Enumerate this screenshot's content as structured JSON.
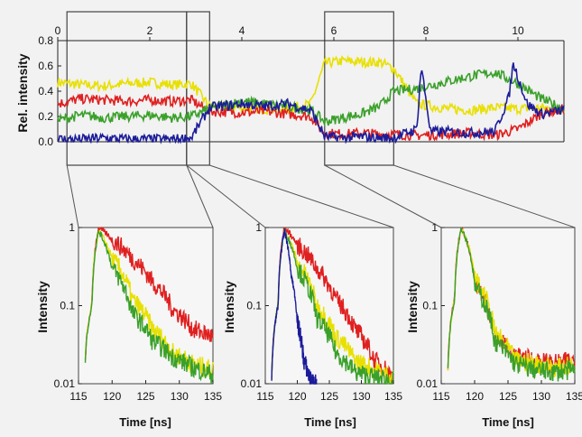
{
  "chart_data": [
    {
      "type": "line",
      "ylabel": "Rel. intensity",
      "xlim": [
        0,
        11
      ],
      "ylim": [
        0,
        0.8
      ],
      "x_ticks": [
        "0",
        "2",
        "4",
        "6",
        "8",
        "10"
      ],
      "y_ticks": [
        "0.0",
        "0.2",
        "0.4",
        "0.6",
        "0.8"
      ],
      "grid": false,
      "highlight_windows": [
        [
          0.2,
          2.8
        ],
        [
          2.8,
          3.3
        ],
        [
          5.8,
          7.3
        ]
      ],
      "series": [
        {
          "color": "#e8e000",
          "x": [
            0,
            0.5,
            1,
            1.5,
            2,
            2.5,
            2.9,
            3.3,
            4,
            4.5,
            5,
            5.5,
            5.8,
            6.2,
            6.6,
            7,
            7.3,
            7.8,
            8.5,
            9,
            9.5,
            10,
            10.5,
            11
          ],
          "values": [
            0.47,
            0.45,
            0.44,
            0.46,
            0.47,
            0.45,
            0.46,
            0.28,
            0.27,
            0.26,
            0.26,
            0.3,
            0.62,
            0.64,
            0.63,
            0.63,
            0.58,
            0.3,
            0.26,
            0.25,
            0.27,
            0.26,
            0.27,
            0.26
          ]
        },
        {
          "color": "#e02020",
          "x": [
            0,
            0.5,
            1,
            1.5,
            2,
            2.5,
            2.9,
            3.3,
            4,
            4.5,
            5,
            5.5,
            5.8,
            6.2,
            6.6,
            7,
            7.3,
            7.8,
            8.5,
            9,
            9.5,
            10,
            10.5,
            11
          ],
          "values": [
            0.3,
            0.34,
            0.33,
            0.32,
            0.33,
            0.32,
            0.33,
            0.24,
            0.23,
            0.24,
            0.22,
            0.2,
            0.07,
            0.06,
            0.07,
            0.06,
            0.06,
            0.05,
            0.06,
            0.07,
            0.05,
            0.1,
            0.22,
            0.26
          ]
        },
        {
          "color": "#3aa02a",
          "x": [
            0,
            0.5,
            1,
            1.5,
            2,
            2.5,
            2.9,
            3.3,
            4,
            4.5,
            5,
            5.5,
            5.8,
            6.2,
            6.6,
            7,
            7.3,
            7.8,
            8.5,
            9,
            9.5,
            10,
            10.5,
            11
          ],
          "values": [
            0.17,
            0.21,
            0.19,
            0.2,
            0.21,
            0.19,
            0.2,
            0.26,
            0.32,
            0.3,
            0.28,
            0.25,
            0.16,
            0.19,
            0.22,
            0.28,
            0.4,
            0.42,
            0.48,
            0.52,
            0.55,
            0.46,
            0.34,
            0.26
          ]
        },
        {
          "color": "#1c1c9a",
          "x": [
            0,
            0.5,
            1,
            1.5,
            2,
            2.5,
            2.9,
            3.3,
            4,
            4.5,
            5,
            5.5,
            5.8,
            6.2,
            6.6,
            7,
            7.3,
            7.8,
            7.9,
            8.1,
            8.5,
            9,
            9.5,
            9.8,
            9.9,
            10.2,
            10.5,
            11
          ],
          "values": [
            0.02,
            0.02,
            0.03,
            0.02,
            0.02,
            0.02,
            0.03,
            0.27,
            0.3,
            0.28,
            0.3,
            0.25,
            0.04,
            0.03,
            0.04,
            0.03,
            0.03,
            0.1,
            0.6,
            0.08,
            0.08,
            0.07,
            0.08,
            0.35,
            0.62,
            0.3,
            0.22,
            0.25
          ]
        }
      ]
    },
    {
      "type": "line",
      "log_scale_y": true,
      "xlabel": "Time [ns]",
      "ylabel": "Intensity",
      "xlim": [
        115,
        135
      ],
      "ylim": [
        0.01,
        1
      ],
      "x_ticks": [
        "115",
        "120",
        "125",
        "130",
        "135"
      ],
      "y_ticks": [
        "1",
        "0.1",
        "0.01"
      ],
      "series": [
        {
          "color": "#e02020",
          "x": [
            116,
            117,
            118,
            120,
            123,
            126,
            129,
            132,
            135
          ],
          "values": [
            0.02,
            0.1,
            1,
            0.7,
            0.4,
            0.2,
            0.09,
            0.05,
            0.04
          ]
        },
        {
          "color": "#e8e000",
          "x": [
            116,
            117,
            118,
            120,
            123,
            126,
            129,
            132,
            135
          ],
          "values": [
            0.02,
            0.1,
            0.9,
            0.4,
            0.12,
            0.05,
            0.025,
            0.018,
            0.015
          ]
        },
        {
          "color": "#3aa02a",
          "x": [
            116,
            117,
            118,
            120,
            123,
            126,
            129,
            132,
            135
          ],
          "values": [
            0.02,
            0.1,
            0.9,
            0.3,
            0.08,
            0.035,
            0.022,
            0.016,
            0.013
          ]
        }
      ]
    },
    {
      "type": "line",
      "log_scale_y": true,
      "xlabel": "Time [ns]",
      "ylabel": "Intensity",
      "xlim": [
        115,
        135
      ],
      "ylim": [
        0.01,
        1
      ],
      "x_ticks": [
        "115",
        "120",
        "125",
        "130",
        "135"
      ],
      "y_ticks": [
        "1",
        "0.1",
        "0.01"
      ],
      "series": [
        {
          "color": "#e02020",
          "x": [
            116,
            117,
            118,
            120,
            123,
            126,
            129,
            132,
            135
          ],
          "values": [
            0.012,
            0.1,
            1,
            0.6,
            0.3,
            0.12,
            0.05,
            0.02,
            0.012
          ]
        },
        {
          "color": "#e8e000",
          "x": [
            116,
            117,
            118,
            120,
            123,
            126,
            129,
            132,
            135
          ],
          "values": [
            0.012,
            0.1,
            0.9,
            0.35,
            0.1,
            0.04,
            0.02,
            0.015,
            0.012
          ]
        },
        {
          "color": "#3aa02a",
          "x": [
            116,
            117,
            118,
            120,
            123,
            126,
            129,
            132,
            135
          ],
          "values": [
            0.012,
            0.1,
            0.9,
            0.3,
            0.07,
            0.025,
            0.014,
            0.012,
            0.011
          ]
        },
        {
          "color": "#1c1c9a",
          "x": [
            116,
            117,
            118,
            119,
            120,
            121,
            122,
            123
          ],
          "values": [
            0.011,
            0.1,
            0.9,
            0.25,
            0.06,
            0.02,
            0.011,
            0.01
          ]
        }
      ]
    },
    {
      "type": "line",
      "log_scale_y": true,
      "xlabel": "Time [ns]",
      "ylabel": "Intensity",
      "xlim": [
        115,
        135
      ],
      "ylim": [
        0.01,
        1
      ],
      "x_ticks": [
        "115",
        "120",
        "125",
        "130",
        "135"
      ],
      "y_ticks": [
        "1",
        "0.1",
        "0.01"
      ],
      "series": [
        {
          "color": "#e02020",
          "x": [
            116,
            117,
            118,
            120,
            123,
            126,
            129,
            132,
            135
          ],
          "values": [
            0.015,
            0.12,
            1,
            0.2,
            0.04,
            0.022,
            0.02,
            0.018,
            0.02
          ]
        },
        {
          "color": "#e8e000",
          "x": [
            116,
            117,
            118,
            120,
            123,
            126,
            129,
            132,
            135
          ],
          "values": [
            0.015,
            0.12,
            1,
            0.22,
            0.045,
            0.02,
            0.018,
            0.016,
            0.017
          ]
        },
        {
          "color": "#3aa02a",
          "x": [
            116,
            117,
            118,
            120,
            123,
            126,
            129,
            132,
            135
          ],
          "values": [
            0.015,
            0.12,
            1,
            0.18,
            0.035,
            0.018,
            0.015,
            0.014,
            0.015
          ]
        }
      ]
    }
  ]
}
